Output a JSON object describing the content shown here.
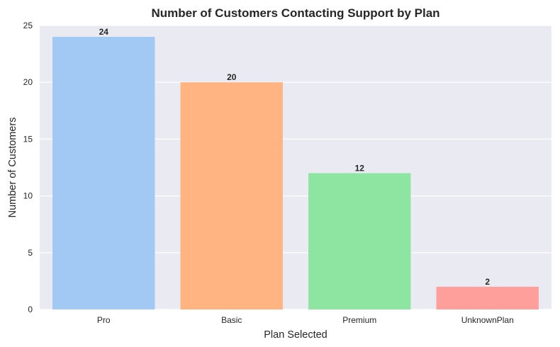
{
  "chart_data": {
    "type": "bar",
    "title": "Number of Customers Contacting Support by Plan",
    "xlabel": "Plan Selected",
    "ylabel": "Number of Customers",
    "categories": [
      "Pro",
      "Basic",
      "Premium",
      "UnknownPlan"
    ],
    "values": [
      24,
      20,
      12,
      2
    ],
    "data_labels": [
      "24",
      "20",
      "12",
      "2"
    ],
    "colors": [
      "#a1c9f4",
      "#ffb482",
      "#8de5a1",
      "#ff9f9b"
    ],
    "ylim": [
      0,
      25
    ],
    "yticks": [
      0,
      5,
      10,
      15,
      20,
      25
    ],
    "ytick_labels": [
      "0",
      "5",
      "10",
      "15",
      "20",
      "25"
    ],
    "grid": true,
    "background_color": "#eaeaf2",
    "grid_color": "#ffffff"
  }
}
